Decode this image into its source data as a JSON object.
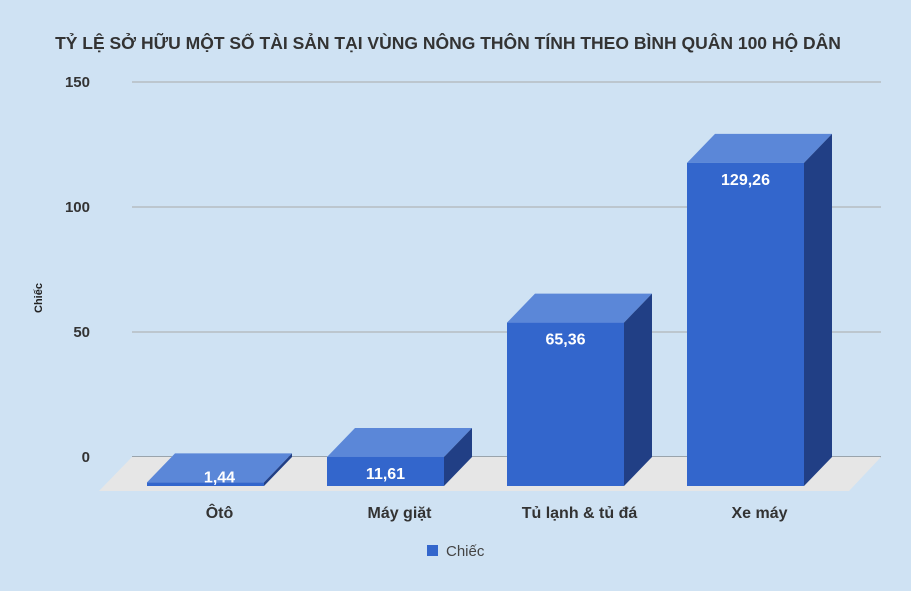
{
  "chart_data": {
    "type": "bar",
    "title": "TỶ LỆ SỞ HỮU MỘT SỐ TÀI SẢN TẠI VÙNG NÔNG THÔN TÍNH THEO BÌNH QUÂN 100 HỘ DÂN",
    "ylabel": "Chiếc",
    "xlabel": "",
    "categories": [
      "Ôtô",
      "Máy giặt",
      "Tủ lạnh & tủ đá",
      "Xe máy"
    ],
    "series": [
      {
        "name": "Chiếc",
        "values": [
          1.44,
          11.61,
          65.36,
          129.26
        ],
        "labels": [
          "1,44",
          "11,61",
          "65,36",
          "129,26"
        ]
      }
    ],
    "ylim": [
      0,
      150
    ],
    "yticks": [
      0,
      50,
      100,
      150
    ],
    "grid": true,
    "style": "3d",
    "legend": "bottom-center",
    "colors": {
      "bar_front": "#3366cc",
      "bar_top": "#5b87d8",
      "bar_side": "#213f85",
      "floor": "#e6e6e6",
      "grid": "#a9a9a9"
    }
  }
}
